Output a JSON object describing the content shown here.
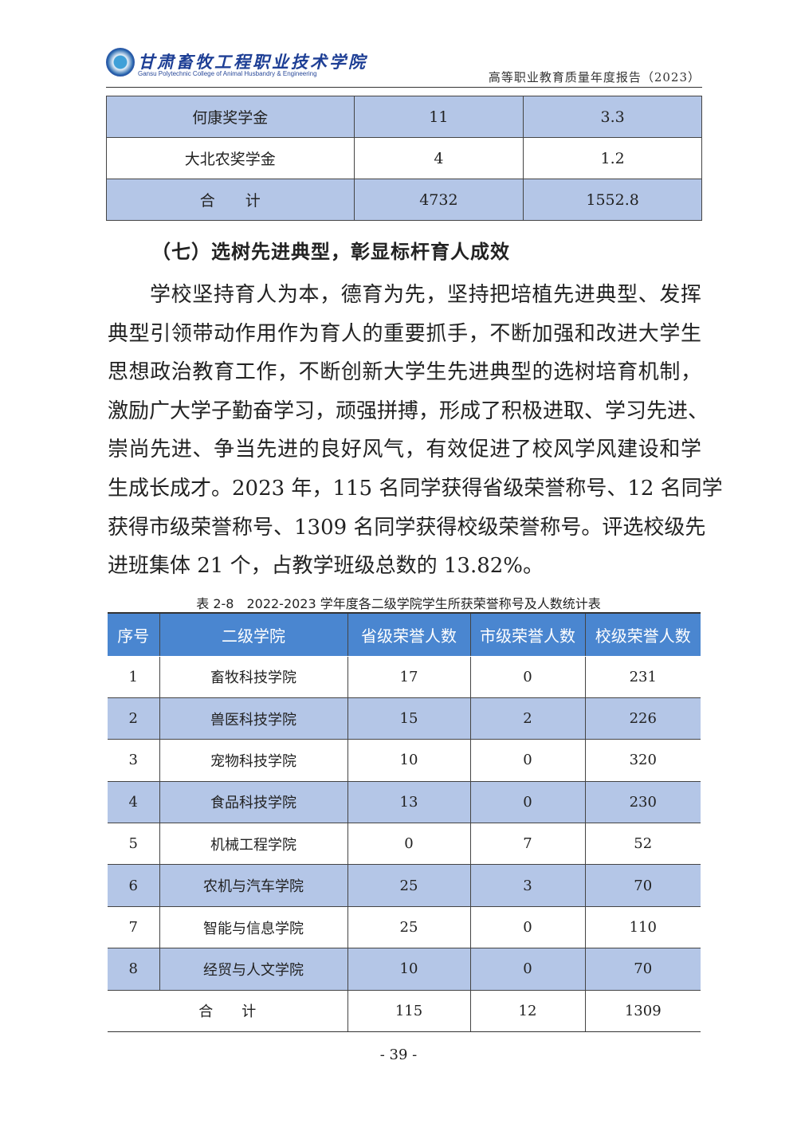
{
  "header": {
    "school_cn": "甘肃畜牧工程职业技术学院",
    "school_en": "Gansu Polytechnic College of Animal Husbandry & Engineering",
    "report_title": "高等职业教育质量年度报告（2023）"
  },
  "top_table": {
    "rows": [
      [
        "何康奖学金",
        "11",
        "3.3"
      ],
      [
        "大北农奖学金",
        "4",
        "1.2"
      ],
      [
        "合　　计",
        "4732",
        "1552.8"
      ]
    ]
  },
  "section_title": "（七）选树先进典型，彰显标杆育人成效",
  "paragraph_lines": [
    "学校坚持育人为本，德育为先，坚持把培植先进典型、发挥",
    "典型引领带动作用作为育人的重要抓手，不断加强和改进大学生",
    "思想政治教育工作，不断创新大学生先进典型的选树培育机制，",
    "激励广大学子勤奋学习，顽强拼搏，形成了积极进取、学习先进、",
    "崇尚先进、争当先进的良好风气，有效促进了校风学风建设和学",
    "生成长成才。2023 年，115 名同学获得省级荣誉称号、12 名同学",
    "获得市级荣誉称号、1309 名同学获得校级荣誉称号。评选校级先",
    "进班集体 21 个，占教学班级总数的 13.82%。"
  ],
  "table_caption": "表 2-8　2022-2023 学年度各二级学院学生所获荣誉称号及人数统计表",
  "honor_table": {
    "headers": [
      "序号",
      "二级学院",
      "省级荣誉人数",
      "市级荣誉人数",
      "校级荣誉人数"
    ],
    "rows": [
      [
        "1",
        "畜牧科技学院",
        "17",
        "0",
        "231"
      ],
      [
        "2",
        "兽医科技学院",
        "15",
        "2",
        "226"
      ],
      [
        "3",
        "宠物科技学院",
        "10",
        "0",
        "320"
      ],
      [
        "4",
        "食品科技学院",
        "13",
        "0",
        "230"
      ],
      [
        "5",
        "机械工程学院",
        "0",
        "7",
        "52"
      ],
      [
        "6",
        "农机与汽车学院",
        "25",
        "3",
        "70"
      ],
      [
        "7",
        "智能与信息学院",
        "25",
        "0",
        "110"
      ],
      [
        "8",
        "经贸与人文学院",
        "10",
        "0",
        "70"
      ]
    ],
    "total": {
      "label": "合　　计",
      "provincial": "115",
      "city": "12",
      "school": "1309"
    }
  },
  "page_number": "- 39 -",
  "colors": {
    "header_fill": "#4a86d0",
    "stripe_fill": "#b4c6e7",
    "school_blue": "#1e3f95"
  }
}
